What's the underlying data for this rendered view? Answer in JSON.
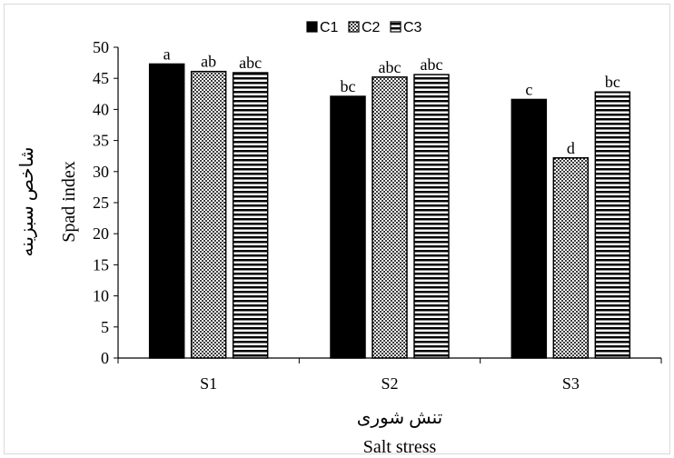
{
  "chart_data": {
    "type": "bar",
    "categories": [
      "S1",
      "S2",
      "S3"
    ],
    "series": [
      {
        "name": "C1",
        "values": [
          47.3,
          42.1,
          41.6
        ],
        "letters": [
          "a",
          "bc",
          "c"
        ],
        "pattern": "solid"
      },
      {
        "name": "C2",
        "values": [
          46.1,
          45.2,
          32.2
        ],
        "letters": [
          "ab",
          "abc",
          "d"
        ],
        "pattern": "dots"
      },
      {
        "name": "C3",
        "values": [
          45.9,
          45.6,
          42.8
        ],
        "letters": [
          "abc",
          "abc",
          "bc"
        ],
        "pattern": "horizontal-lines"
      }
    ],
    "title": "",
    "ylabel_fa": "شاخص سبزینه",
    "ylabel": "Spad index",
    "xlabel_fa": "تنش شوری",
    "xlabel": "Salt stress",
    "ylim": [
      0,
      50
    ],
    "yticks": [
      0,
      5,
      10,
      15,
      20,
      25,
      30,
      35,
      40,
      45,
      50
    ],
    "legend_position": "top",
    "grid": false,
    "colors": {
      "bar": "#000000",
      "background": "#ffffff"
    }
  }
}
